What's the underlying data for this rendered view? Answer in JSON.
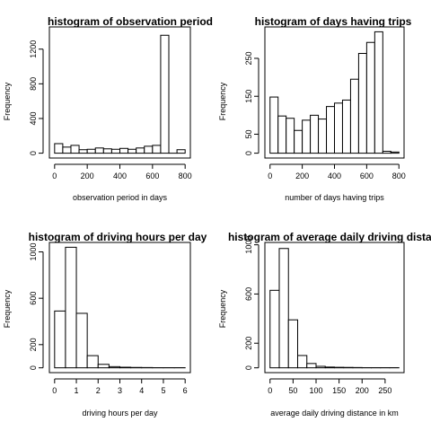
{
  "chart_data": [
    {
      "type": "bar",
      "title": "histogram of observation period",
      "xlabel": "observation period in days",
      "ylabel": "Frequency",
      "bin_edges": [
        0,
        50,
        100,
        150,
        200,
        250,
        300,
        350,
        400,
        450,
        500,
        550,
        600,
        650,
        700,
        750,
        800
      ],
      "values": [
        110,
        70,
        90,
        40,
        45,
        60,
        50,
        45,
        55,
        45,
        60,
        80,
        90,
        1360,
        0,
        40
      ],
      "xlim": [
        0,
        800
      ],
      "ylim": [
        0,
        1400
      ],
      "xticks": [
        "0",
        "200",
        "400",
        "600",
        "800"
      ],
      "xtick_values": [
        0,
        200,
        400,
        600,
        800
      ],
      "yticks": [
        "0",
        "400",
        "800",
        "1200"
      ],
      "ytick_values": [
        0,
        400,
        800,
        1200
      ]
    },
    {
      "type": "bar",
      "title": "histogram of days having trips",
      "xlabel": "number of days having trips",
      "ylabel": "Frequency",
      "bin_edges": [
        0,
        50,
        100,
        150,
        200,
        250,
        300,
        350,
        400,
        450,
        500,
        550,
        600,
        650,
        700,
        750,
        800
      ],
      "values": [
        148,
        98,
        92,
        60,
        87,
        100,
        90,
        123,
        132,
        140,
        195,
        263,
        292,
        320,
        5,
        3
      ],
      "xlim": [
        0,
        800
      ],
      "ylim": [
        0,
        320
      ],
      "xticks": [
        "0",
        "200",
        "400",
        "600",
        "800"
      ],
      "xtick_values": [
        0,
        200,
        400,
        600,
        800
      ],
      "yticks": [
        "0",
        "50",
        "150",
        "250"
      ],
      "ytick_values": [
        0,
        50,
        150,
        250
      ]
    },
    {
      "type": "bar",
      "title": "histogram of driving hours per day",
      "xlabel": "driving hours per day",
      "ylabel": "Frequency",
      "bin_edges": [
        0,
        0.5,
        1,
        1.5,
        2,
        2.5,
        3,
        3.5,
        4,
        4.5,
        5,
        5.5,
        6
      ],
      "values": [
        490,
        1040,
        470,
        105,
        30,
        10,
        5,
        3,
        2,
        1,
        1,
        1
      ],
      "xlim": [
        0,
        6
      ],
      "ylim": [
        0,
        1040
      ],
      "xticks": [
        "0",
        "1",
        "2",
        "3",
        "4",
        "5",
        "6"
      ],
      "xtick_values": [
        0,
        1,
        2,
        3,
        4,
        5,
        6
      ],
      "yticks": [
        "0",
        "200",
        "600",
        "1000"
      ],
      "ytick_values": [
        0,
        200,
        600,
        1000
      ]
    },
    {
      "type": "bar",
      "title": "histogram of average daily driving distan",
      "xlabel": "average daily driving distance in km",
      "ylabel": "Frequency",
      "bin_edges": [
        0,
        20,
        40,
        60,
        80,
        100,
        120,
        140,
        160,
        180,
        200,
        220,
        240,
        260,
        280
      ],
      "values": [
        630,
        970,
        390,
        100,
        35,
        12,
        6,
        4,
        3,
        2,
        1,
        1,
        1,
        1
      ],
      "xlim": [
        0,
        280
      ],
      "ylim": [
        0,
        980
      ],
      "xticks": [
        "0",
        "50",
        "100",
        "150",
        "200",
        "250"
      ],
      "xtick_values": [
        0,
        50,
        100,
        150,
        200,
        250
      ],
      "yticks": [
        "0",
        "200",
        "600",
        "1000"
      ],
      "ytick_values": [
        0,
        200,
        600,
        1000
      ]
    }
  ]
}
